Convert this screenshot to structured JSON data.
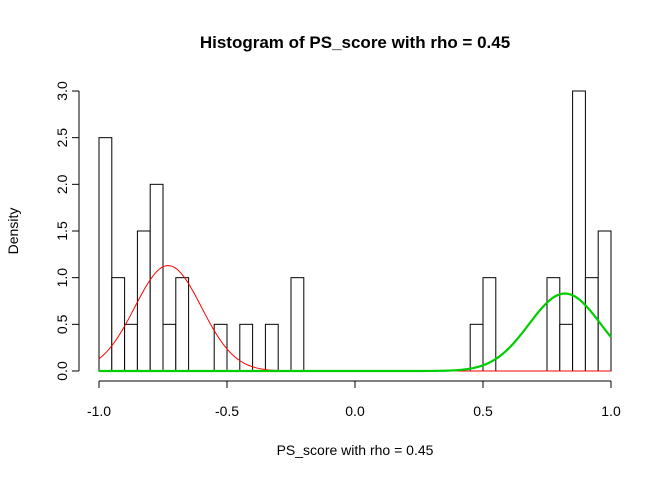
{
  "chart_data": {
    "type": "bar",
    "title": "Histogram of PS_score with rho = 0.45",
    "xlabel": "PS_score with rho = 0.45",
    "ylabel": "Density",
    "xlim": [
      -1.0,
      1.0
    ],
    "ylim": [
      0,
      3.0
    ],
    "xticks": [
      "-1.0",
      "-0.5",
      "0.0",
      "0.5",
      "1.0"
    ],
    "yticks": [
      "0.0",
      "0.5",
      "1.0",
      "1.5",
      "2.0",
      "2.5",
      "3.0"
    ],
    "bin_width": 0.05,
    "bins": [
      {
        "x0": -1.0,
        "x1": -0.95,
        "density": 2.5
      },
      {
        "x0": -0.95,
        "x1": -0.9,
        "density": 1.0
      },
      {
        "x0": -0.9,
        "x1": -0.85,
        "density": 0.5
      },
      {
        "x0": -0.85,
        "x1": -0.8,
        "density": 1.5
      },
      {
        "x0": -0.8,
        "x1": -0.75,
        "density": 2.0
      },
      {
        "x0": -0.75,
        "x1": -0.7,
        "density": 0.5
      },
      {
        "x0": -0.7,
        "x1": -0.65,
        "density": 1.0
      },
      {
        "x0": -0.55,
        "x1": -0.5,
        "density": 0.5
      },
      {
        "x0": -0.45,
        "x1": -0.4,
        "density": 0.5
      },
      {
        "x0": -0.35,
        "x1": -0.3,
        "density": 0.5
      },
      {
        "x0": -0.25,
        "x1": -0.2,
        "density": 1.0
      },
      {
        "x0": 0.45,
        "x1": 0.5,
        "density": 0.5
      },
      {
        "x0": 0.5,
        "x1": 0.55,
        "density": 1.0
      },
      {
        "x0": 0.75,
        "x1": 0.8,
        "density": 1.0
      },
      {
        "x0": 0.8,
        "x1": 0.85,
        "density": 0.5
      },
      {
        "x0": 0.85,
        "x1": 0.9,
        "density": 3.0
      },
      {
        "x0": 0.9,
        "x1": 0.95,
        "density": 1.0
      },
      {
        "x0": 0.95,
        "x1": 1.0,
        "density": 1.5
      }
    ],
    "curves": [
      {
        "color": "#ff0000",
        "mean": -0.73,
        "amplitude": 1.13,
        "sd": 0.13,
        "x_range": [
          -1.0,
          1.0
        ],
        "line": "thin"
      },
      {
        "color": "#00cd00",
        "mean": 0.82,
        "amplitude": 0.83,
        "sd": 0.14,
        "x_range": [
          -1.0,
          1.0
        ],
        "line": "thick"
      }
    ],
    "grid": false,
    "bar_fill": "#ffffff",
    "bar_stroke": "#000000"
  }
}
